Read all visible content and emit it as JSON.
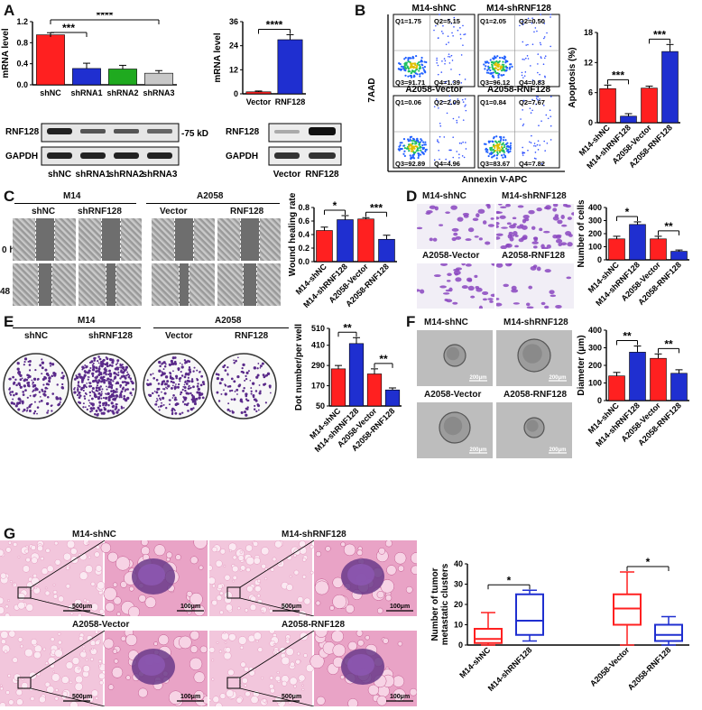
{
  "panel_labels": [
    "A",
    "B",
    "C",
    "D",
    "E",
    "F",
    "G"
  ],
  "A": {
    "blot_left": {
      "rows": [
        "RNF128",
        "GAPDH"
      ],
      "marker": "-75 kD",
      "lanes": [
        "shNC",
        "shRNA1",
        "shRNA2",
        "shRNA3"
      ]
    },
    "blot_right": {
      "rows": [
        "RNF128",
        "GAPDH"
      ],
      "lanes": [
        "Vector",
        "RNF128"
      ]
    }
  },
  "B": {
    "flow": [
      {
        "title": "M14-shNC",
        "q1": "Q1=1.75",
        "q2": "Q2=5.15",
        "q3": "Q3=91.71",
        "q4": "Q4=1.39"
      },
      {
        "title": "M14-shRNF128",
        "q1": "Q1=2.05",
        "q2": "Q2=0.50",
        "q3": "Q3=96.12",
        "q4": "Q4=0.83"
      },
      {
        "title": "A2058-Vector",
        "q1": "Q1=0.06",
        "q2": "Q2=2.09",
        "q3": "Q3=92.89",
        "q4": "Q4=4.96"
      },
      {
        "title": "A2058-RNF128",
        "q1": "Q1=0.84",
        "q2": "Q2=7.67",
        "q3": "Q3=83.67",
        "q4": "Q4=7.82"
      }
    ],
    "flow_ylabel": "7AAD",
    "flow_xlabel": "Annexin V-APC"
  },
  "C": {
    "groups": [
      "M14",
      "A2058"
    ],
    "columns": [
      "shNC",
      "shRNF128",
      "Vector",
      "RNF128"
    ],
    "rows": [
      "0 h",
      "48 h"
    ]
  },
  "D": {
    "images": [
      "M14-shNC",
      "M14-shRNF128",
      "A2058-Vector",
      "A2058-RNF128"
    ]
  },
  "E": {
    "groups": [
      "M14",
      "A2058"
    ],
    "columns": [
      "shNC",
      "shRNF128",
      "Vector",
      "RNF128"
    ]
  },
  "F": {
    "images": [
      "M14-shNC",
      "M14-shRNF128",
      "A2058-Vector",
      "A2058-RNF128"
    ],
    "scale": "200μm"
  },
  "G": {
    "images": [
      "M14-shNC",
      "M14-shRNF128",
      "A2058-Vector",
      "A2058-RNF128"
    ],
    "scale_low": "500μm",
    "scale_high": "100μm"
  },
  "colors": {
    "red": "#ff2020",
    "green": "#1faa1f",
    "grey": "#c8c8c8",
    "blue": "#1f2fd0",
    "purple": "#7a3aa0",
    "he_pink": "#e87bb0"
  },
  "chart_data": [
    {
      "id": "A1",
      "type": "bar",
      "ylabel": "mRNA level",
      "categories": [
        "shNC",
        "shRNA1",
        "shRNA2",
        "shRNA3"
      ],
      "values": [
        0.95,
        0.31,
        0.3,
        0.22
      ],
      "errors": [
        0.04,
        0.1,
        0.07,
        0.05
      ],
      "ylim": [
        0,
        1.2
      ],
      "yticks": [
        "0.0",
        "0.4",
        "0.8",
        "1.2"
      ],
      "colors": [
        "#ff2020",
        "#1f2fd0",
        "#1faa1f",
        "#c8c8c8"
      ],
      "sig": [
        {
          "from": 0,
          "to": 1,
          "label": "***"
        },
        {
          "from": 0,
          "to": 3,
          "label": "****"
        }
      ]
    },
    {
      "id": "A2",
      "type": "bar",
      "ylabel": "mRNA level",
      "categories": [
        "Vector",
        "RNF128"
      ],
      "values": [
        1.0,
        27.0
      ],
      "errors": [
        0.4,
        2.5
      ],
      "ylim": [
        0,
        36
      ],
      "yticks": [
        "0",
        "12",
        "24",
        "36"
      ],
      "colors": [
        "#ff2020",
        "#1f2fd0"
      ],
      "sig": [
        {
          "from": 0,
          "to": 1,
          "label": "****"
        }
      ]
    },
    {
      "id": "B",
      "type": "bar",
      "ylabel": "Apoptosis (%)",
      "categories": [
        "M14-shNC",
        "M14-shRNF128",
        "A2058-Vector",
        "A2058-RNF128"
      ],
      "values": [
        6.8,
        1.3,
        6.9,
        14.2
      ],
      "errors": [
        0.7,
        0.5,
        0.4,
        1.4
      ],
      "ylim": [
        0,
        18
      ],
      "yticks": [
        "0",
        "6",
        "12",
        "18"
      ],
      "colors": [
        "#ff2020",
        "#1f2fd0",
        "#ff2020",
        "#1f2fd0"
      ],
      "sig": [
        {
          "from": 0,
          "to": 1,
          "label": "***"
        },
        {
          "from": 2,
          "to": 3,
          "label": "***"
        }
      ]
    },
    {
      "id": "C",
      "type": "bar",
      "ylabel": "Wound healing rate",
      "categories": [
        "M14-shNC",
        "M14-shRNF128",
        "A2058-Vector",
        "A2058-RNF128"
      ],
      "values": [
        0.46,
        0.62,
        0.63,
        0.33
      ],
      "errors": [
        0.05,
        0.06,
        0.02,
        0.06
      ],
      "ylim": [
        0,
        0.8
      ],
      "yticks": [
        "0.0",
        "0.2",
        "0.4",
        "0.6",
        "0.8"
      ],
      "colors": [
        "#ff2020",
        "#1f2fd0",
        "#ff2020",
        "#1f2fd0"
      ],
      "sig": [
        {
          "from": 0,
          "to": 1,
          "label": "*"
        },
        {
          "from": 2,
          "to": 3,
          "label": "***"
        }
      ]
    },
    {
      "id": "D",
      "type": "bar",
      "ylabel": "Number of cells",
      "categories": [
        "M14-shNC",
        "M14-shRNF128",
        "A2058-Vector",
        "A2058-RNF128"
      ],
      "values": [
        160,
        270,
        160,
        65
      ],
      "errors": [
        20,
        20,
        20,
        10
      ],
      "ylim": [
        0,
        400
      ],
      "yticks": [
        "0",
        "100",
        "200",
        "300",
        "400"
      ],
      "colors": [
        "#ff2020",
        "#1f2fd0",
        "#ff2020",
        "#1f2fd0"
      ],
      "sig": [
        {
          "from": 0,
          "to": 1,
          "label": "*"
        },
        {
          "from": 2,
          "to": 3,
          "label": "**"
        }
      ]
    },
    {
      "id": "E",
      "type": "bar",
      "ylabel": "Dot number/per well",
      "categories": [
        "M14-shNC",
        "M14-shRNF128",
        "A2058-Vector",
        "A2058-RNF128"
      ],
      "values": [
        270,
        420,
        240,
        145
      ],
      "errors": [
        20,
        35,
        30,
        12
      ],
      "ylim": [
        50,
        510
      ],
      "yticks": [
        "50",
        "170",
        "290",
        "410",
        "510"
      ],
      "colors": [
        "#ff2020",
        "#1f2fd0",
        "#ff2020",
        "#1f2fd0"
      ],
      "sig": [
        {
          "from": 0,
          "to": 1,
          "label": "**"
        },
        {
          "from": 2,
          "to": 3,
          "label": "**"
        }
      ]
    },
    {
      "id": "F",
      "type": "bar",
      "ylabel": "Diameter (μm)",
      "categories": [
        "M14-shNC",
        "M14-shRNF128",
        "A2058-Vector",
        "A2058-RNF128"
      ],
      "values": [
        140,
        275,
        240,
        155
      ],
      "errors": [
        20,
        35,
        25,
        20
      ],
      "ylim": [
        0,
        400
      ],
      "yticks": [
        "0",
        "100",
        "200",
        "300",
        "400"
      ],
      "colors": [
        "#ff2020",
        "#1f2fd0",
        "#ff2020",
        "#1f2fd0"
      ],
      "sig": [
        {
          "from": 0,
          "to": 1,
          "label": "**"
        },
        {
          "from": 2,
          "to": 3,
          "label": "**"
        }
      ]
    },
    {
      "id": "G",
      "type": "box",
      "ylabel": "Number of tumor metastatic clusters",
      "categories": [
        "M14-shNC",
        "M14-shRNF128",
        "A2058-Vector",
        "A2058-RNF128"
      ],
      "boxes": [
        {
          "min": 0,
          "q1": 1,
          "median": 3,
          "q3": 8,
          "max": 16
        },
        {
          "min": 2,
          "q1": 5,
          "median": 12,
          "q3": 25,
          "max": 27
        },
        {
          "min": 0,
          "q1": 10,
          "median": 18,
          "q3": 25,
          "max": 36
        },
        {
          "min": 0,
          "q1": 2,
          "median": 5,
          "q3": 10,
          "max": 14
        }
      ],
      "ylim": [
        0,
        40
      ],
      "yticks": [
        "0",
        "10",
        "20",
        "30",
        "40"
      ],
      "colors": [
        "#ff2020",
        "#1f2fd0",
        "#ff2020",
        "#1f2fd0"
      ],
      "sig": [
        {
          "from": 0,
          "to": 1,
          "label": "*"
        },
        {
          "from": 2,
          "to": 3,
          "label": "*"
        }
      ]
    }
  ]
}
